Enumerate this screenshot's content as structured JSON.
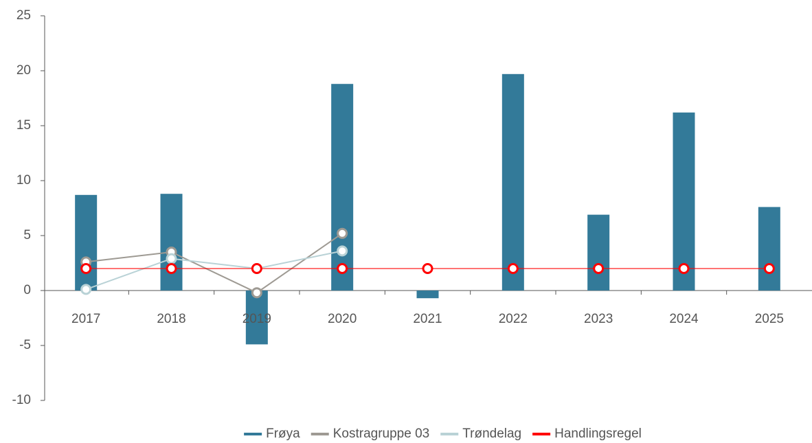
{
  "chart_data": {
    "type": "bar-line",
    "categories": [
      "2017",
      "2018",
      "2019",
      "2020",
      "2021",
      "2022",
      "2023",
      "2024",
      "2025"
    ],
    "series": [
      {
        "name": "Frøya",
        "type": "bar",
        "color": "#337a99",
        "values": [
          8.7,
          8.8,
          -4.9,
          18.8,
          -0.7,
          19.7,
          6.9,
          16.2,
          7.6
        ]
      },
      {
        "name": "Kostragruppe 03",
        "type": "line",
        "color": "#9e9a93",
        "values": [
          2.6,
          3.5,
          -0.2,
          5.2,
          null,
          null,
          null,
          null,
          null
        ]
      },
      {
        "name": "Trøndelag",
        "type": "line",
        "color": "#b9d2d6",
        "values": [
          0.1,
          2.9,
          2.0,
          3.6,
          null,
          null,
          null,
          null,
          null
        ]
      },
      {
        "name": "Handlingsregel",
        "type": "line",
        "color": "#ff0000",
        "values": [
          2,
          2,
          2,
          2,
          2,
          2,
          2,
          2,
          2
        ]
      }
    ],
    "ylim": [
      -10,
      25
    ],
    "yticks": [
      -10,
      -5,
      0,
      5,
      10,
      15,
      20,
      25
    ],
    "grid": false,
    "legend": "bottom"
  }
}
